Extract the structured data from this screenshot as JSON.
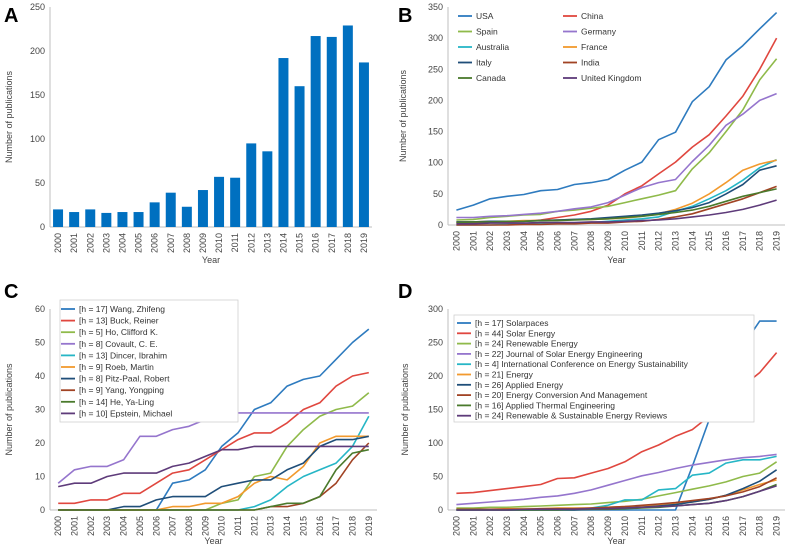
{
  "chart_data": [
    {
      "panel": "A",
      "type": "bar",
      "xlabel": "Year",
      "ylabel": "Number of publications",
      "ylim": [
        0,
        250
      ],
      "yticks": [
        0,
        50,
        100,
        150,
        200,
        250
      ],
      "grid": false,
      "legend": "none",
      "categories": [
        "2000",
        "2001",
        "2002",
        "2003",
        "2004",
        "2005",
        "2006",
        "2007",
        "2008",
        "2009",
        "2010",
        "2011",
        "2012",
        "2013",
        "2014",
        "2015",
        "2016",
        "2017",
        "2018",
        "2019"
      ],
      "series": [
        {
          "name": "Publications",
          "color": "#0070c0",
          "values": [
            20,
            17,
            20,
            16,
            17,
            17,
            28,
            39,
            23,
            42,
            57,
            56,
            95,
            86,
            192,
            160,
            217,
            216,
            229,
            187
          ]
        }
      ]
    },
    {
      "panel": "B",
      "type": "line",
      "xlabel": "Year",
      "ylabel": "Number of publications",
      "ylim": [
        0,
        350
      ],
      "yticks": [
        0,
        50,
        100,
        150,
        200,
        250,
        300,
        350
      ],
      "grid": false,
      "legend": "top-left",
      "legend_cols": 2,
      "x": [
        "2000",
        "2001",
        "2002",
        "2003",
        "2004",
        "2005",
        "2006",
        "2007",
        "2008",
        "2009",
        "2010",
        "2011",
        "2012",
        "2013",
        "2014",
        "2015",
        "2016",
        "2017",
        "2018",
        "2019"
      ],
      "series": [
        {
          "name": "USA",
          "color": "#2e7bbf",
          "values": [
            24,
            32,
            42,
            46,
            49,
            55,
            57,
            65,
            68,
            73,
            88,
            101,
            137,
            149,
            198,
            222,
            265,
            288,
            315,
            341
          ]
        },
        {
          "name": "China",
          "color": "#e0473f",
          "values": [
            3,
            4,
            4,
            5,
            6,
            8,
            12,
            16,
            22,
            32,
            50,
            63,
            82,
            101,
            125,
            145,
            175,
            207,
            250,
            300
          ]
        },
        {
          "name": "Spain",
          "color": "#8fba4a",
          "values": [
            8,
            9,
            12,
            14,
            16,
            17,
            22,
            24,
            27,
            30,
            36,
            42,
            48,
            55,
            90,
            116,
            150,
            185,
            233,
            267
          ]
        },
        {
          "name": "Germany",
          "color": "#9575cd",
          "values": [
            12,
            12,
            14,
            15,
            17,
            19,
            22,
            26,
            29,
            36,
            48,
            60,
            68,
            73,
            102,
            128,
            160,
            178,
            200,
            211
          ]
        },
        {
          "name": "Australia",
          "color": "#26b6c6",
          "values": [
            0,
            0,
            0,
            1,
            2,
            3,
            3,
            3,
            4,
            6,
            8,
            10,
            13,
            22,
            30,
            42,
            55,
            72,
            92,
            105
          ]
        },
        {
          "name": "France",
          "color": "#f29a2e",
          "values": [
            5,
            5,
            6,
            6,
            7,
            7,
            8,
            9,
            9,
            10,
            11,
            14,
            18,
            25,
            35,
            50,
            68,
            88,
            98,
            104
          ]
        },
        {
          "name": "Italy",
          "color": "#1f4e79",
          "values": [
            5,
            5,
            6,
            6,
            6,
            7,
            8,
            9,
            10,
            12,
            14,
            16,
            19,
            23,
            28,
            36,
            50,
            65,
            88,
            95
          ]
        },
        {
          "name": "India",
          "color": "#a14324",
          "values": [
            0,
            0,
            0,
            0,
            1,
            1,
            2,
            2,
            3,
            3,
            5,
            6,
            9,
            13,
            18,
            26,
            34,
            42,
            52,
            62
          ]
        },
        {
          "name": "Canada",
          "color": "#4a7a2c",
          "values": [
            4,
            5,
            5,
            6,
            6,
            7,
            7,
            8,
            9,
            10,
            12,
            14,
            17,
            20,
            24,
            30,
            38,
            46,
            52,
            58
          ]
        },
        {
          "name": "United Kingdom",
          "color": "#5e3b7a",
          "values": [
            2,
            2,
            3,
            3,
            3,
            4,
            4,
            4,
            5,
            5,
            6,
            7,
            8,
            10,
            13,
            16,
            20,
            25,
            32,
            40
          ]
        }
      ]
    },
    {
      "panel": "C",
      "type": "line",
      "xlabel": "Year",
      "ylabel": "Number of publications",
      "ylim": [
        0,
        60
      ],
      "yticks": [
        0,
        10,
        20,
        30,
        40,
        50,
        60
      ],
      "grid": false,
      "legend": "top-left",
      "legend_cols": 1,
      "x": [
        "2000",
        "2001",
        "2002",
        "2003",
        "2004",
        "2005",
        "2006",
        "2007",
        "2008",
        "2009",
        "2010",
        "2011",
        "2012",
        "2013",
        "2014",
        "2015",
        "2016",
        "2017",
        "2018",
        "2019"
      ],
      "series": [
        {
          "name": "[h = 17]  Wang, Zhifeng",
          "color": "#2e7bbf",
          "values": [
            0,
            0,
            0,
            0,
            0,
            0,
            0,
            8,
            9,
            12,
            19,
            23,
            30,
            32,
            37,
            39,
            40,
            45,
            50,
            54
          ]
        },
        {
          "name": "[h = 13]  Buck, Reiner",
          "color": "#e0473f",
          "values": [
            2,
            2,
            3,
            3,
            5,
            5,
            8,
            11,
            12,
            15,
            18,
            21,
            23,
            23,
            26,
            30,
            32,
            37,
            40,
            41
          ]
        },
        {
          "name": "[h = 5]  Ho, Clifford K.",
          "color": "#8fba4a",
          "values": [
            0,
            0,
            0,
            0,
            0,
            0,
            0,
            0,
            0,
            0,
            2,
            3,
            10,
            11,
            19,
            24,
            28,
            30,
            31,
            35
          ]
        },
        {
          "name": "[h = 8]  Covault, C. E.",
          "color": "#9575cd",
          "values": [
            8,
            12,
            13,
            13,
            15,
            22,
            22,
            24,
            25,
            27,
            28,
            29,
            29,
            29,
            29,
            29,
            29,
            29,
            29,
            29
          ]
        },
        {
          "name": "[h = 13]  Dincer, Ibrahim",
          "color": "#26b6c6",
          "values": [
            0,
            0,
            0,
            0,
            0,
            0,
            0,
            0,
            0,
            0,
            0,
            0,
            1,
            3,
            7,
            10,
            12,
            14,
            19,
            28
          ]
        },
        {
          "name": "[h = 9]  Roeb, Martin",
          "color": "#f29a2e",
          "values": [
            0,
            0,
            0,
            0,
            0,
            0,
            0,
            1,
            1,
            2,
            2,
            4,
            8,
            10,
            9,
            13,
            20,
            22,
            22,
            22
          ]
        },
        {
          "name": "[h = 8]  Pitz-Paal, Robert",
          "color": "#1f4e79",
          "values": [
            0,
            0,
            0,
            0,
            1,
            1,
            3,
            4,
            4,
            4,
            7,
            8,
            9,
            9,
            12,
            14,
            19,
            21,
            21,
            22
          ]
        },
        {
          "name": "[h = 9]  Yang, Yongping",
          "color": "#a14324",
          "values": [
            0,
            0,
            0,
            0,
            0,
            0,
            0,
            0,
            0,
            0,
            0,
            0,
            0,
            1,
            1,
            2,
            4,
            8,
            15,
            20
          ]
        },
        {
          "name": "[h = 14]  He, Ya-Ling",
          "color": "#4a7a2c",
          "values": [
            0,
            0,
            0,
            0,
            0,
            0,
            0,
            0,
            0,
            0,
            0,
            0,
            0,
            1,
            2,
            2,
            4,
            12,
            17,
            18
          ]
        },
        {
          "name": "[h = 10]  Epstein, Michael",
          "color": "#5e3b7a",
          "values": [
            7,
            8,
            8,
            10,
            11,
            11,
            11,
            13,
            14,
            16,
            18,
            18,
            19,
            19,
            19,
            19,
            19,
            19,
            19,
            19
          ]
        }
      ]
    },
    {
      "panel": "D",
      "type": "line",
      "xlabel": "Year",
      "ylabel": "Number of publications",
      "ylim": [
        0,
        300
      ],
      "yticks": [
        0,
        50,
        100,
        150,
        200,
        250,
        300
      ],
      "grid": false,
      "legend": "top-left",
      "legend_cols": 1,
      "x": [
        "2000",
        "2001",
        "2002",
        "2003",
        "2004",
        "2005",
        "2006",
        "2007",
        "2008",
        "2009",
        "2010",
        "2011",
        "2012",
        "2013",
        "2014",
        "2015",
        "2016",
        "2017",
        "2018",
        "2019"
      ],
      "series": [
        {
          "name": "[h = 17]  Solarpaces",
          "color": "#2e7bbf",
          "values": [
            0,
            0,
            0,
            0,
            0,
            0,
            0,
            0,
            0,
            0,
            0,
            0,
            0,
            0,
            65,
            135,
            205,
            245,
            282,
            282
          ]
        },
        {
          "name": "[h = 44]  Solar Energy",
          "color": "#e0473f",
          "values": [
            25,
            26,
            29,
            32,
            35,
            38,
            47,
            48,
            55,
            62,
            72,
            87,
            97,
            110,
            120,
            140,
            155,
            185,
            205,
            235
          ]
        },
        {
          "name": "[h = 24]  Renewable Energy",
          "color": "#8fba4a",
          "values": [
            3,
            3,
            4,
            4,
            5,
            6,
            7,
            8,
            9,
            11,
            13,
            16,
            21,
            26,
            31,
            36,
            42,
            50,
            55,
            72
          ]
        },
        {
          "name": "[h = 22]  Journal of Solar Energy Engineering",
          "color": "#9575cd",
          "values": [
            8,
            10,
            12,
            14,
            16,
            19,
            21,
            25,
            30,
            37,
            44,
            51,
            56,
            62,
            67,
            71,
            75,
            78,
            80,
            83
          ]
        },
        {
          "name": "[h = 4]  International Conference on Energy Sustainability",
          "color": "#26b6c6",
          "values": [
            0,
            0,
            0,
            0,
            0,
            0,
            0,
            0,
            3,
            7,
            15,
            15,
            30,
            32,
            52,
            55,
            70,
            75,
            75,
            80
          ]
        },
        {
          "name": "[h = 21]  Energy",
          "color": "#f29a2e",
          "values": [
            1,
            1,
            1,
            2,
            2,
            2,
            3,
            3,
            3,
            4,
            5,
            5,
            7,
            9,
            12,
            16,
            22,
            30,
            38,
            45
          ]
        },
        {
          "name": "[h = 26]  Applied Energy",
          "color": "#1f4e79",
          "values": [
            0,
            0,
            0,
            0,
            0,
            0,
            0,
            0,
            1,
            2,
            3,
            4,
            6,
            8,
            12,
            16,
            22,
            32,
            43,
            60
          ]
        },
        {
          "name": "[h = 20]  Energy Conversion And Management",
          "color": "#a14324",
          "values": [
            1,
            1,
            1,
            1,
            1,
            2,
            2,
            2,
            3,
            4,
            5,
            7,
            9,
            11,
            14,
            17,
            21,
            27,
            35,
            48
          ]
        },
        {
          "name": "[h = 16]  Applied Thermal Engineering",
          "color": "#4a7a2c",
          "values": [
            0,
            0,
            0,
            0,
            0,
            0,
            0,
            1,
            1,
            1,
            2,
            3,
            4,
            6,
            8,
            10,
            14,
            20,
            28,
            38
          ]
        },
        {
          "name": "[h = 24]  Renewable & Sustainable Energy Reviews",
          "color": "#5e3b7a",
          "values": [
            0,
            0,
            0,
            0,
            1,
            1,
            1,
            1,
            2,
            2,
            3,
            4,
            5,
            6,
            8,
            10,
            14,
            20,
            28,
            36
          ]
        }
      ]
    }
  ]
}
